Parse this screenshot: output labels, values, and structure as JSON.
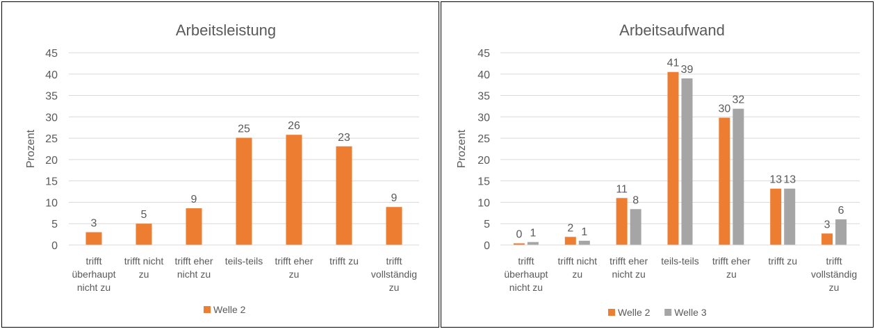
{
  "chart_data": [
    {
      "type": "bar",
      "title": "Arbeitsleistung",
      "ylabel": "Prozent",
      "xlabel": "",
      "ylim": [
        0,
        45
      ],
      "yticks": [
        0,
        5,
        10,
        15,
        20,
        25,
        30,
        35,
        40,
        45
      ],
      "categories": [
        [
          "trifft",
          "überhaupt",
          "nicht zu"
        ],
        [
          "trifft nicht",
          "zu"
        ],
        [
          "trifft eher",
          "nicht zu"
        ],
        [
          "teils-teils"
        ],
        [
          "trifft eher",
          "zu"
        ],
        [
          "trifft zu"
        ],
        [
          "trifft",
          "vollständig",
          "zu"
        ]
      ],
      "series": [
        {
          "name": "Welle 2",
          "color": "#ED7D31",
          "values": [
            3,
            5,
            8.6,
            25.1,
            25.8,
            23.1,
            8.9
          ],
          "labels": [
            "3",
            "5",
            "9",
            "25",
            "26",
            "23",
            "9"
          ]
        }
      ],
      "grid": true,
      "legend": "bottom"
    },
    {
      "type": "bar",
      "title": "Arbeitsaufwand",
      "ylabel": "Prozent",
      "xlabel": "",
      "ylim": [
        0,
        45
      ],
      "yticks": [
        0,
        5,
        10,
        15,
        20,
        25,
        30,
        35,
        40,
        45
      ],
      "categories": [
        [
          "trifft",
          "überhaupt",
          "nicht zu"
        ],
        [
          "trifft nicht",
          "zu"
        ],
        [
          "trifft eher",
          "nicht zu"
        ],
        [
          "teils-teils"
        ],
        [
          "trifft eher",
          "zu"
        ],
        [
          "trifft zu"
        ],
        [
          "trifft",
          "vollständig",
          "zu"
        ]
      ],
      "series": [
        {
          "name": "Welle 2",
          "color": "#ED7D31",
          "values": [
            0.4,
            1.9,
            11,
            40.5,
            29.8,
            13.2,
            2.7
          ],
          "labels": [
            "0",
            "2",
            "11",
            "41",
            "30",
            "13",
            "3"
          ]
        },
        {
          "name": "Welle 3",
          "color": "#A5A5A5",
          "values": [
            0.7,
            1.0,
            8.4,
            39.0,
            31.9,
            13.2,
            6.0
          ],
          "labels": [
            "1",
            "1",
            "8",
            "39",
            "32",
            "13",
            "6"
          ]
        }
      ],
      "grid": true,
      "legend": "bottom"
    }
  ]
}
